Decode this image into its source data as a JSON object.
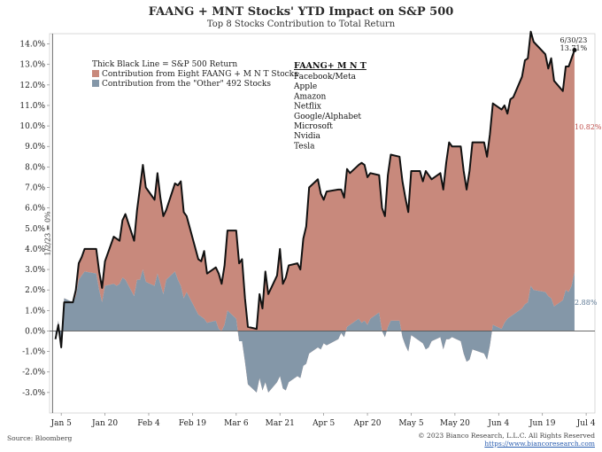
{
  "chart_data": {
    "type": "area",
    "title": "FAANG + MNT Stocks' YTD Impact on S&P 500",
    "subtitle": "Top 8 Stocks Contribution to Total Return",
    "ylim": [
      -4.0,
      14.5
    ],
    "y_ticks": [
      14,
      13,
      12,
      11,
      10,
      9,
      8,
      7,
      6,
      5,
      4,
      3,
      2,
      1,
      0,
      -1,
      -2,
      -3
    ],
    "y_tick_labels": [
      "14.0%",
      "13.0%",
      "12.0%",
      "11.0%",
      "10.0%",
      "9.0%",
      "8.0%",
      "7.0%",
      "6.0%",
      "5.0%",
      "4.0%",
      "3.0%",
      "2.0%",
      "1.0%",
      "0.0%",
      "-1.0%",
      "-2.0%",
      "-3.0%"
    ],
    "x_range": [
      "2023-01-01",
      "2023-07-07"
    ],
    "x_ticks": [
      "2023-01-05",
      "2023-01-20",
      "2023-02-04",
      "2023-02-19",
      "2023-03-06",
      "2023-03-21",
      "2023-04-05",
      "2023-04-20",
      "2023-05-05",
      "2023-05-20",
      "2023-06-04",
      "2023-06-19",
      "2023-07-04"
    ],
    "x_tick_labels": [
      "Jan 5",
      "Jan 20",
      "Feb 4",
      "Feb 19",
      "Mar 6",
      "Mar 21",
      "Apr 5",
      "Apr 20",
      "May 5",
      "May 20",
      "Jun 4",
      "Jun 19",
      "Jul 4"
    ],
    "start_marker_label": "1/2/23 = 0%",
    "legend": {
      "line_note": "Thick Black Line = S&P 500 Return",
      "faang_label": "Contribution from Eight FAANG + M N T Stocks",
      "other_label": "Contribution from the \"Other\" 492 Stocks"
    },
    "stock_list": {
      "title": "FAANG+ M N T",
      "items": [
        "Facebook/Meta",
        "Apple",
        "Amazon",
        "Netflix",
        "Google/Alphabet",
        "Microsoft",
        "Nvidia",
        "Tesla"
      ]
    },
    "end_annotation": {
      "date": "6/30/23",
      "value_label": "13.71%"
    },
    "faang_end_label": "10.82%",
    "other_end_label": "2.88%",
    "colors": {
      "faang": "#c8897c",
      "other": "#8497a8",
      "sp500": "#111111",
      "faang_label": "#c0504d",
      "other_label": "#5f7a95"
    },
    "series": [
      {
        "name": "S&P 500 Return",
        "points": [
          [
            "2023-01-03",
            -0.4
          ],
          [
            "2023-01-04",
            0.3
          ],
          [
            "2023-01-05",
            -0.8
          ],
          [
            "2023-01-06",
            1.4
          ],
          [
            "2023-01-09",
            1.4
          ],
          [
            "2023-01-10",
            2.0
          ],
          [
            "2023-01-11",
            3.3
          ],
          [
            "2023-01-12",
            3.6
          ],
          [
            "2023-01-13",
            4.0
          ],
          [
            "2023-01-17",
            4.0
          ],
          [
            "2023-01-18",
            2.9
          ],
          [
            "2023-01-19",
            2.1
          ],
          [
            "2023-01-20",
            3.4
          ],
          [
            "2023-01-23",
            4.6
          ],
          [
            "2023-01-24",
            4.5
          ],
          [
            "2023-01-25",
            4.4
          ],
          [
            "2023-01-26",
            5.4
          ],
          [
            "2023-01-27",
            5.7
          ],
          [
            "2023-01-30",
            4.4
          ],
          [
            "2023-01-31",
            5.9
          ],
          [
            "2023-02-01",
            7.0
          ],
          [
            "2023-02-02",
            8.1
          ],
          [
            "2023-02-03",
            7.0
          ],
          [
            "2023-02-06",
            6.4
          ],
          [
            "2023-02-07",
            7.7
          ],
          [
            "2023-02-08",
            6.5
          ],
          [
            "2023-02-09",
            5.6
          ],
          [
            "2023-02-10",
            5.9
          ],
          [
            "2023-02-13",
            7.2
          ],
          [
            "2023-02-14",
            7.1
          ],
          [
            "2023-02-15",
            7.3
          ],
          [
            "2023-02-16",
            5.8
          ],
          [
            "2023-02-17",
            5.6
          ],
          [
            "2023-02-21",
            3.5
          ],
          [
            "2023-02-22",
            3.4
          ],
          [
            "2023-02-23",
            3.9
          ],
          [
            "2023-02-24",
            2.8
          ],
          [
            "2023-02-27",
            3.1
          ],
          [
            "2023-02-28",
            2.8
          ],
          [
            "2023-03-01",
            2.3
          ],
          [
            "2023-03-02",
            3.2
          ],
          [
            "2023-03-03",
            4.9
          ],
          [
            "2023-03-06",
            4.9
          ],
          [
            "2023-03-07",
            3.3
          ],
          [
            "2023-03-08",
            3.5
          ],
          [
            "2023-03-09",
            1.6
          ],
          [
            "2023-03-10",
            0.2
          ],
          [
            "2023-03-13",
            0.1
          ],
          [
            "2023-03-14",
            1.8
          ],
          [
            "2023-03-15",
            1.1
          ],
          [
            "2023-03-16",
            2.9
          ],
          [
            "2023-03-17",
            1.8
          ],
          [
            "2023-03-20",
            2.7
          ],
          [
            "2023-03-21",
            4.0
          ],
          [
            "2023-03-22",
            2.3
          ],
          [
            "2023-03-23",
            2.6
          ],
          [
            "2023-03-24",
            3.2
          ],
          [
            "2023-03-27",
            3.3
          ],
          [
            "2023-03-28",
            3.0
          ],
          [
            "2023-03-29",
            4.5
          ],
          [
            "2023-03-30",
            5.1
          ],
          [
            "2023-03-31",
            7.0
          ],
          [
            "2023-04-03",
            7.4
          ],
          [
            "2023-04-04",
            6.7
          ],
          [
            "2023-04-05",
            6.4
          ],
          [
            "2023-04-06",
            6.8
          ],
          [
            "2023-04-10",
            6.9
          ],
          [
            "2023-04-11",
            6.9
          ],
          [
            "2023-04-12",
            6.5
          ],
          [
            "2023-04-13",
            7.9
          ],
          [
            "2023-04-14",
            7.7
          ],
          [
            "2023-04-17",
            8.1
          ],
          [
            "2023-04-18",
            8.2
          ],
          [
            "2023-04-19",
            8.1
          ],
          [
            "2023-04-20",
            7.5
          ],
          [
            "2023-04-21",
            7.7
          ],
          [
            "2023-04-24",
            7.6
          ],
          [
            "2023-04-25",
            6.0
          ],
          [
            "2023-04-26",
            5.6
          ],
          [
            "2023-04-27",
            7.6
          ],
          [
            "2023-04-28",
            8.6
          ],
          [
            "2023-05-01",
            8.5
          ],
          [
            "2023-05-02",
            7.3
          ],
          [
            "2023-05-03",
            6.5
          ],
          [
            "2023-05-04",
            5.8
          ],
          [
            "2023-05-05",
            7.8
          ],
          [
            "2023-05-08",
            7.8
          ],
          [
            "2023-05-09",
            7.3
          ],
          [
            "2023-05-10",
            7.8
          ],
          [
            "2023-05-11",
            7.6
          ],
          [
            "2023-05-12",
            7.4
          ],
          [
            "2023-05-15",
            7.7
          ],
          [
            "2023-05-16",
            6.9
          ],
          [
            "2023-05-17",
            8.2
          ],
          [
            "2023-05-18",
            9.2
          ],
          [
            "2023-05-19",
            9.0
          ],
          [
            "2023-05-22",
            9.0
          ],
          [
            "2023-05-23",
            7.8
          ],
          [
            "2023-05-24",
            6.9
          ],
          [
            "2023-05-25",
            7.8
          ],
          [
            "2023-05-26",
            9.2
          ],
          [
            "2023-05-30",
            9.2
          ],
          [
            "2023-05-31",
            8.5
          ],
          [
            "2023-06-01",
            9.6
          ],
          [
            "2023-06-02",
            11.1
          ],
          [
            "2023-06-05",
            10.8
          ],
          [
            "2023-06-06",
            11.0
          ],
          [
            "2023-06-07",
            10.6
          ],
          [
            "2023-06-08",
            11.3
          ],
          [
            "2023-06-09",
            11.4
          ],
          [
            "2023-06-12",
            12.4
          ],
          [
            "2023-06-13",
            13.2
          ],
          [
            "2023-06-14",
            13.3
          ],
          [
            "2023-06-15",
            14.6
          ],
          [
            "2023-06-16",
            14.1
          ],
          [
            "2023-06-20",
            13.5
          ],
          [
            "2023-06-21",
            12.8
          ],
          [
            "2023-06-22",
            13.3
          ],
          [
            "2023-06-23",
            12.2
          ],
          [
            "2023-06-26",
            11.7
          ],
          [
            "2023-06-27",
            12.9
          ],
          [
            "2023-06-28",
            12.9
          ],
          [
            "2023-06-29",
            13.3
          ],
          [
            "2023-06-30",
            13.7
          ]
        ]
      },
      {
        "name": "Contribution from the \"Other\" 492 Stocks",
        "points": [
          [
            "2023-01-03",
            -0.3
          ],
          [
            "2023-01-04",
            0.5
          ],
          [
            "2023-01-05",
            -0.6
          ],
          [
            "2023-01-06",
            1.6
          ],
          [
            "2023-01-09",
            1.4
          ],
          [
            "2023-01-10",
            1.7
          ],
          [
            "2023-01-11",
            2.5
          ],
          [
            "2023-01-12",
            2.7
          ],
          [
            "2023-01-13",
            2.9
          ],
          [
            "2023-01-17",
            2.8
          ],
          [
            "2023-01-18",
            2.0
          ],
          [
            "2023-01-19",
            1.4
          ],
          [
            "2023-01-20",
            2.2
          ],
          [
            "2023-01-23",
            2.3
          ],
          [
            "2023-01-24",
            2.2
          ],
          [
            "2023-01-25",
            2.3
          ],
          [
            "2023-01-26",
            2.6
          ],
          [
            "2023-01-27",
            2.5
          ],
          [
            "2023-01-30",
            1.7
          ],
          [
            "2023-01-31",
            2.5
          ],
          [
            "2023-02-01",
            2.5
          ],
          [
            "2023-02-02",
            3.0
          ],
          [
            "2023-02-03",
            2.4
          ],
          [
            "2023-02-06",
            2.2
          ],
          [
            "2023-02-07",
            2.8
          ],
          [
            "2023-02-08",
            2.3
          ],
          [
            "2023-02-09",
            1.8
          ],
          [
            "2023-02-10",
            2.5
          ],
          [
            "2023-02-13",
            2.9
          ],
          [
            "2023-02-14",
            2.5
          ],
          [
            "2023-02-15",
            2.2
          ],
          [
            "2023-02-16",
            1.6
          ],
          [
            "2023-02-17",
            1.9
          ],
          [
            "2023-02-21",
            0.8
          ],
          [
            "2023-02-22",
            0.7
          ],
          [
            "2023-02-23",
            0.6
          ],
          [
            "2023-02-24",
            0.4
          ],
          [
            "2023-02-27",
            0.5
          ],
          [
            "2023-02-28",
            0.1
          ],
          [
            "2023-03-01",
            0.0
          ],
          [
            "2023-03-02",
            0.3
          ],
          [
            "2023-03-03",
            1.0
          ],
          [
            "2023-03-06",
            0.6
          ],
          [
            "2023-03-07",
            -0.5
          ],
          [
            "2023-03-08",
            -0.5
          ],
          [
            "2023-03-09",
            -1.5
          ],
          [
            "2023-03-10",
            -2.6
          ],
          [
            "2023-03-13",
            -3.0
          ],
          [
            "2023-03-14",
            -2.3
          ],
          [
            "2023-03-15",
            -2.9
          ],
          [
            "2023-03-16",
            -2.5
          ],
          [
            "2023-03-17",
            -3.0
          ],
          [
            "2023-03-20",
            -2.5
          ],
          [
            "2023-03-21",
            -2.2
          ],
          [
            "2023-03-22",
            -2.8
          ],
          [
            "2023-03-23",
            -2.9
          ],
          [
            "2023-03-24",
            -2.5
          ],
          [
            "2023-03-27",
            -2.2
          ],
          [
            "2023-03-28",
            -2.3
          ],
          [
            "2023-03-29",
            -1.7
          ],
          [
            "2023-03-30",
            -1.6
          ],
          [
            "2023-03-31",
            -1.1
          ],
          [
            "2023-04-03",
            -0.8
          ],
          [
            "2023-04-04",
            -0.9
          ],
          [
            "2023-04-05",
            -0.6
          ],
          [
            "2023-04-06",
            -0.7
          ],
          [
            "2023-04-10",
            -0.4
          ],
          [
            "2023-04-11",
            -0.1
          ],
          [
            "2023-04-12",
            -0.3
          ],
          [
            "2023-04-13",
            0.2
          ],
          [
            "2023-04-14",
            0.3
          ],
          [
            "2023-04-17",
            0.6
          ],
          [
            "2023-04-18",
            0.4
          ],
          [
            "2023-04-19",
            0.5
          ],
          [
            "2023-04-20",
            0.3
          ],
          [
            "2023-04-21",
            0.6
          ],
          [
            "2023-04-24",
            0.9
          ],
          [
            "2023-04-25",
            0.0
          ],
          [
            "2023-04-26",
            -0.3
          ],
          [
            "2023-04-27",
            0.2
          ],
          [
            "2023-04-28",
            0.5
          ],
          [
            "2023-05-01",
            0.5
          ],
          [
            "2023-05-02",
            -0.3
          ],
          [
            "2023-05-03",
            -0.7
          ],
          [
            "2023-05-04",
            -1.0
          ],
          [
            "2023-05-05",
            -0.2
          ],
          [
            "2023-05-08",
            -0.5
          ],
          [
            "2023-05-09",
            -0.6
          ],
          [
            "2023-05-10",
            -0.9
          ],
          [
            "2023-05-11",
            -0.8
          ],
          [
            "2023-05-12",
            -0.5
          ],
          [
            "2023-05-15",
            -0.3
          ],
          [
            "2023-05-16",
            -0.9
          ],
          [
            "2023-05-17",
            -0.4
          ],
          [
            "2023-05-18",
            -0.4
          ],
          [
            "2023-05-19",
            -0.3
          ],
          [
            "2023-05-22",
            -0.5
          ],
          [
            "2023-05-23",
            -1.1
          ],
          [
            "2023-05-24",
            -1.5
          ],
          [
            "2023-05-25",
            -1.4
          ],
          [
            "2023-05-26",
            -0.9
          ],
          [
            "2023-05-30",
            -1.1
          ],
          [
            "2023-05-31",
            -1.4
          ],
          [
            "2023-06-01",
            -0.7
          ],
          [
            "2023-06-02",
            0.3
          ],
          [
            "2023-06-05",
            0.1
          ],
          [
            "2023-06-06",
            0.4
          ],
          [
            "2023-06-07",
            0.6
          ],
          [
            "2023-06-08",
            0.7
          ],
          [
            "2023-06-09",
            0.8
          ],
          [
            "2023-06-12",
            1.1
          ],
          [
            "2023-06-13",
            1.3
          ],
          [
            "2023-06-14",
            1.4
          ],
          [
            "2023-06-15",
            2.2
          ],
          [
            "2023-06-16",
            2.0
          ],
          [
            "2023-06-20",
            1.9
          ],
          [
            "2023-06-21",
            1.7
          ],
          [
            "2023-06-22",
            1.6
          ],
          [
            "2023-06-23",
            1.2
          ],
          [
            "2023-06-26",
            1.5
          ],
          [
            "2023-06-27",
            2.0
          ],
          [
            "2023-06-28",
            1.9
          ],
          [
            "2023-06-29",
            2.2
          ],
          [
            "2023-06-30",
            2.88
          ]
        ]
      }
    ]
  },
  "footer": {
    "source": "Source: Bloomberg",
    "copyright": "© 2023 Bianco Research, L.L.C. All Rights Reserved",
    "url": "https://www.biancoresearch.com"
  }
}
